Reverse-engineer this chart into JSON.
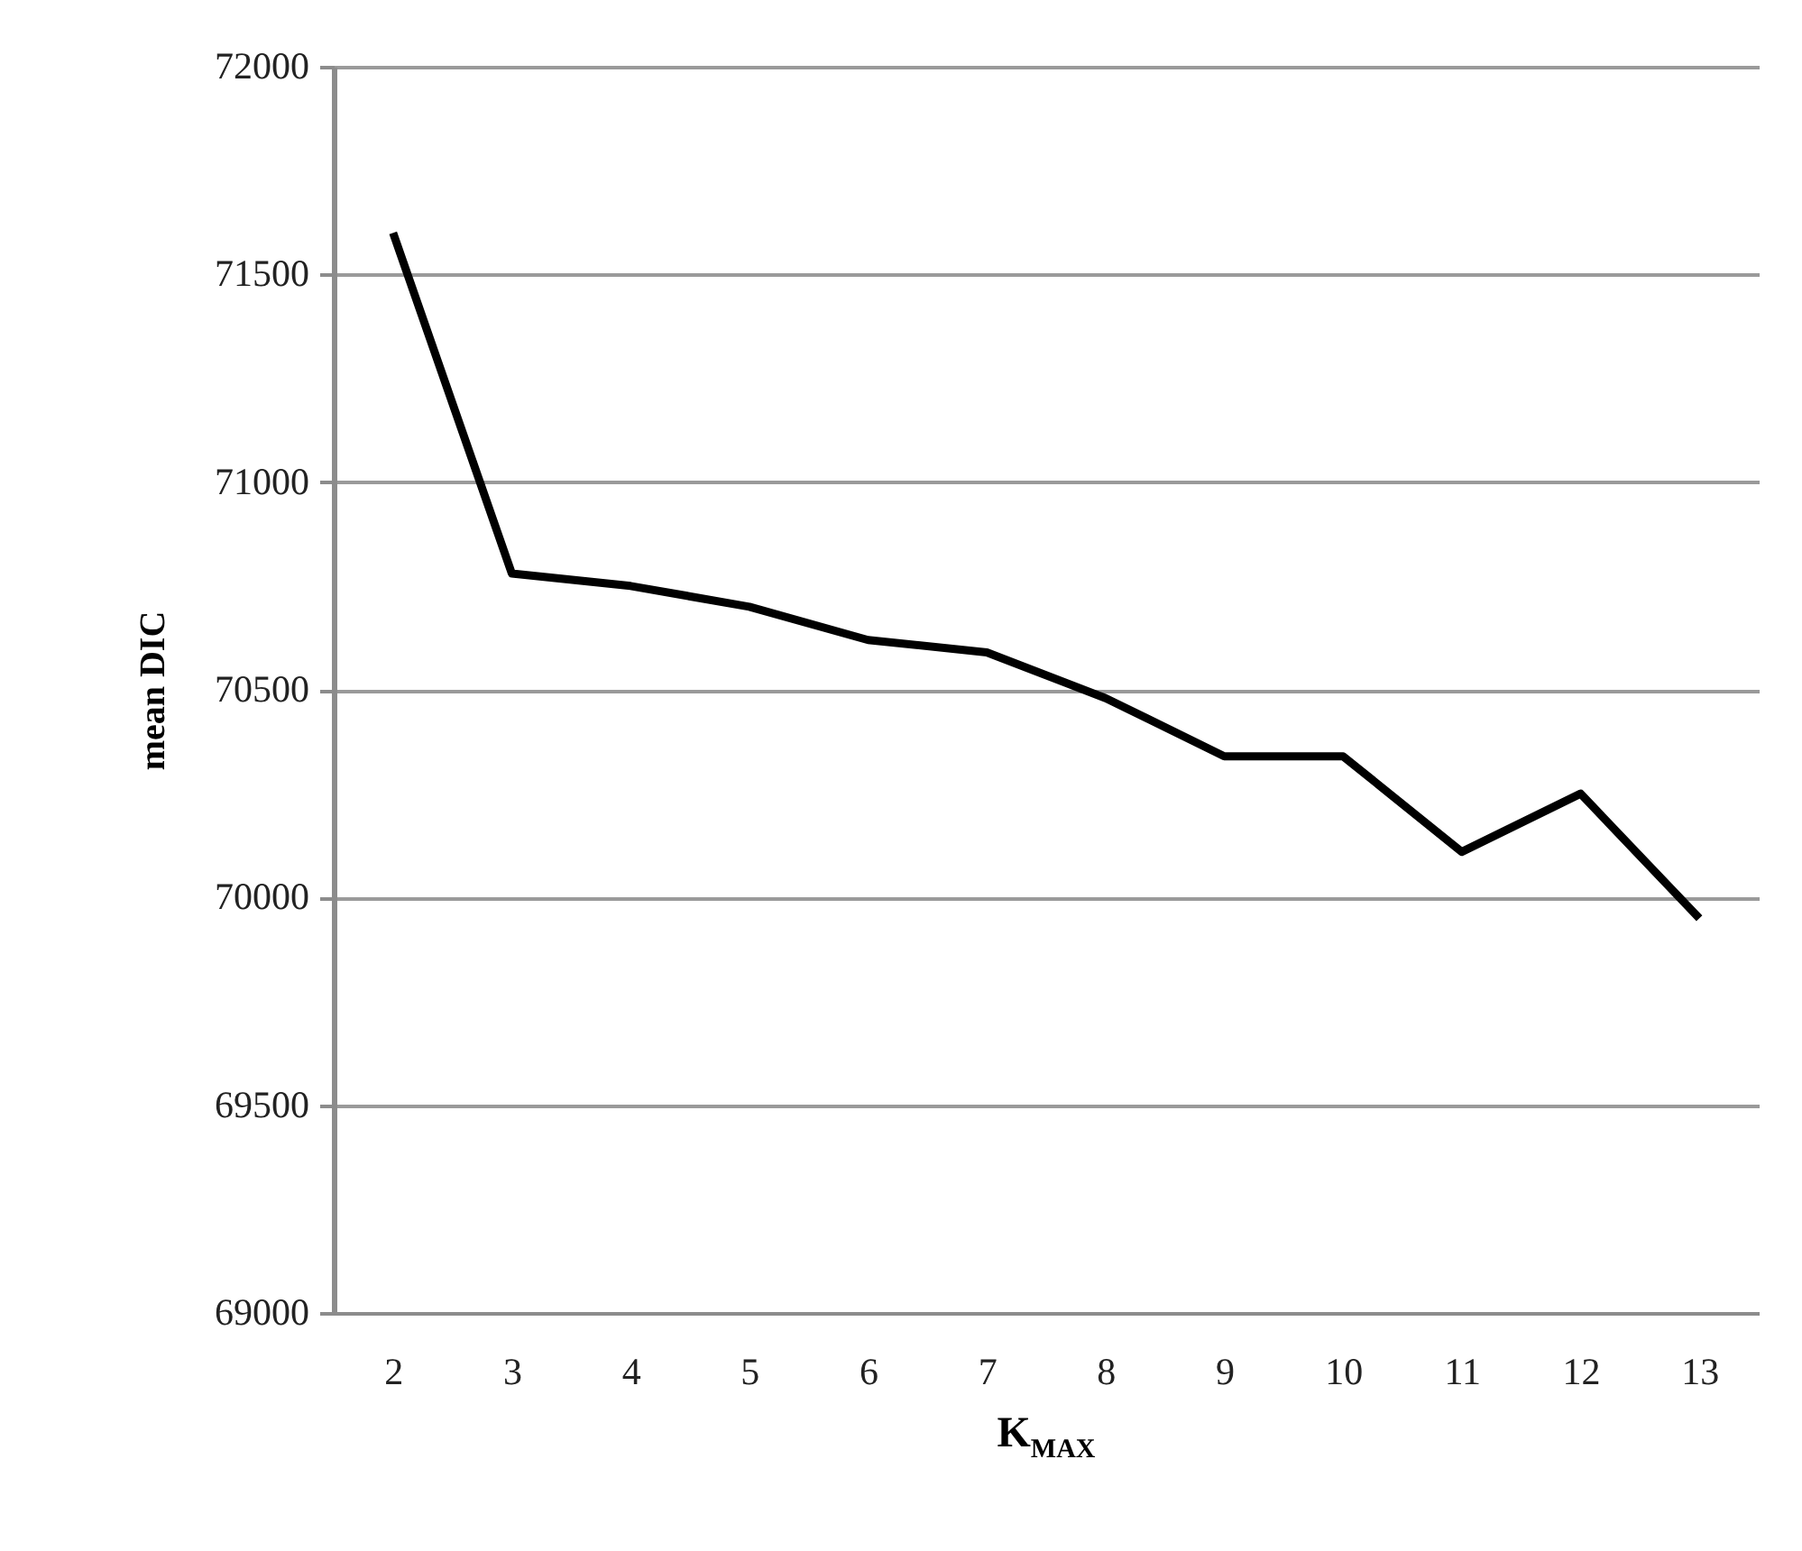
{
  "chart_data": {
    "type": "line",
    "xlabel": "K$_{MAX}$",
    "ylabel": "mean DIC",
    "categories": [
      "2",
      "3",
      "4",
      "5",
      "6",
      "7",
      "8",
      "9",
      "10",
      "11",
      "12",
      "13"
    ],
    "series": [
      {
        "color": "#000000",
        "values": [
          71600,
          70780,
          70750,
          70700,
          70620,
          70590,
          70480,
          70340,
          70340,
          70110,
          70250,
          69950
        ]
      }
    ],
    "ylim": [
      69000,
      72000
    ],
    "yticks": [
      69000,
      69500,
      70000,
      70500,
      71000,
      71500,
      72000
    ],
    "grid": "y"
  }
}
